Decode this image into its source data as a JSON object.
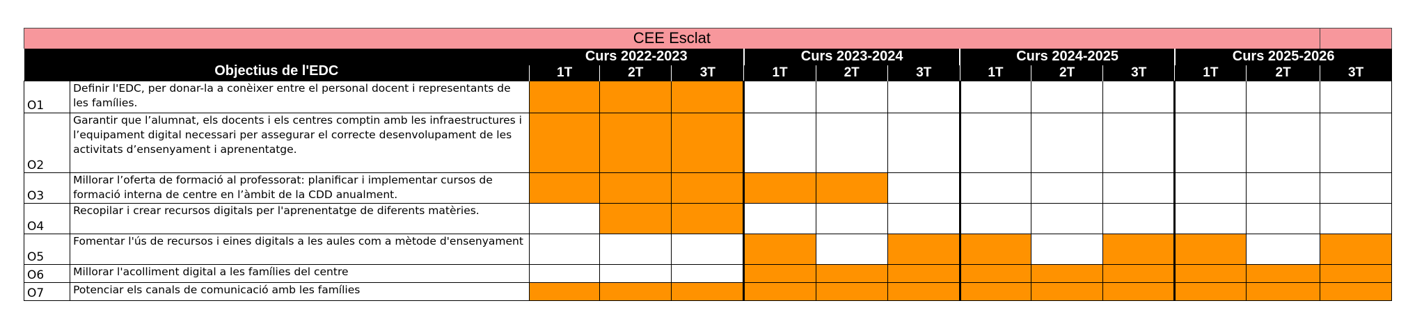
{
  "title": "CEE Esclat",
  "objectives_header": "Objectius de l'EDC",
  "years": [
    "Curs 2022-2023",
    "Curs 2023-2024",
    "Curs 2024-2025",
    "Curs 2025-2026"
  ],
  "terms": [
    "1T",
    "2T",
    "3T"
  ],
  "colors": {
    "title_bg": "#f7979c",
    "header_bg": "#000000",
    "planned": "#ff9200",
    "empty": "#ffffff"
  },
  "objectives": [
    {
      "code": "O1",
      "text": "Definir l'EDC, per donar-la a conèixer entre el personal docent i representants de les famílies.",
      "schedule": [
        1,
        1,
        1,
        0,
        0,
        0,
        0,
        0,
        0,
        0,
        0,
        0
      ]
    },
    {
      "code": "O2",
      "text": "Garantir que l’alumnat, els docents i els centres comptin amb les infraestructures i l’equipament digital necessari per assegurar el correcte desenvolupament de les activitats d’ensenyament i aprenentatge.",
      "schedule": [
        1,
        1,
        1,
        0,
        0,
        0,
        0,
        0,
        0,
        0,
        0,
        0
      ]
    },
    {
      "code": "O3",
      "text": "Millorar l’oferta de formació al professorat: planificar i implementar cursos de formació interna de centre en l’àmbit de la CDD anualment.",
      "schedule": [
        1,
        1,
        1,
        1,
        1,
        0,
        0,
        0,
        0,
        0,
        0,
        0
      ]
    },
    {
      "code": "O4",
      "text": "Recopilar i crear recursos digitals per l'aprenentatge de diferents matèries.",
      "schedule": [
        0,
        1,
        1,
        0,
        0,
        0,
        0,
        0,
        0,
        0,
        0,
        0
      ]
    },
    {
      "code": "O5",
      "text": "Fomentar l'ús de recursos i eines digitals a les aules com a mètode d'ensenyament",
      "schedule": [
        0,
        0,
        0,
        1,
        0,
        1,
        1,
        0,
        1,
        1,
        0,
        1
      ]
    },
    {
      "code": "O6",
      "text": "Millorar l'acolliment digital a les famílies del centre",
      "schedule": [
        0,
        0,
        0,
        1,
        1,
        1,
        1,
        1,
        1,
        1,
        1,
        1
      ]
    },
    {
      "code": "O7",
      "text": "Potenciar els canals de comunicació amb les famílies",
      "schedule": [
        1,
        1,
        1,
        1,
        1,
        1,
        1,
        1,
        1,
        1,
        1,
        1
      ]
    }
  ]
}
